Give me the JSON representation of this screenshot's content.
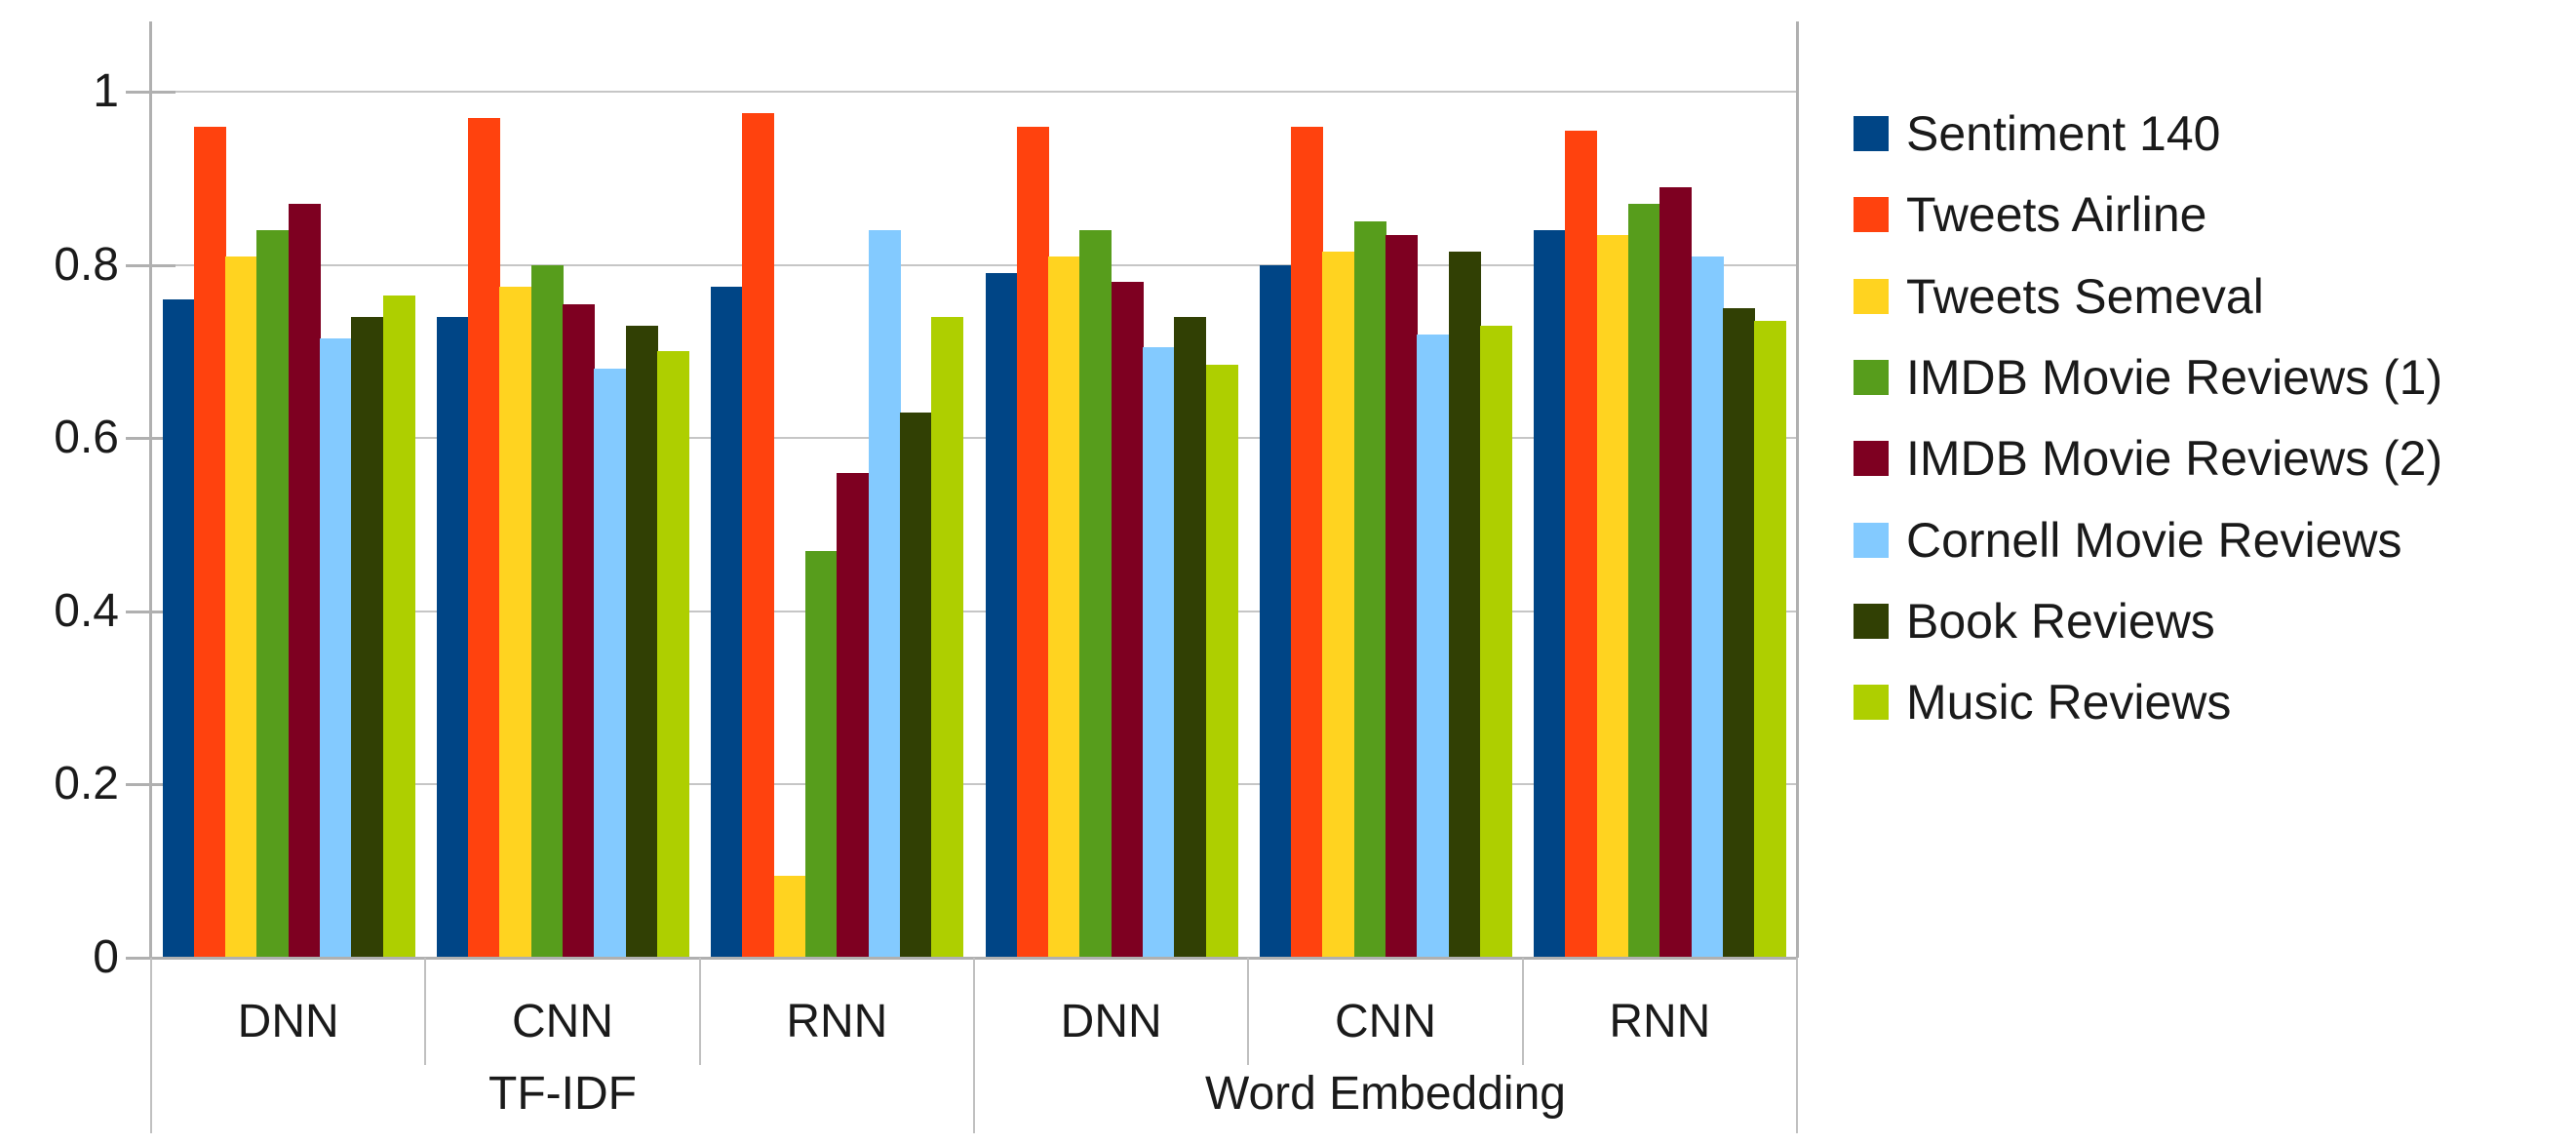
{
  "chart_data": {
    "type": "bar",
    "title": "",
    "xlabel": "",
    "ylabel": "",
    "ylim": [
      0,
      1
    ],
    "y_ticks": [
      0,
      0.2,
      0.4,
      0.6,
      0.8,
      1
    ],
    "y_tick_labels": [
      "0",
      "0.2",
      "0.4",
      "0.6",
      "0.8",
      "1"
    ],
    "grid": true,
    "legend_position": "right",
    "x_level1": [
      "DNN",
      "CNN",
      "RNN",
      "DNN",
      "CNN",
      "RNN"
    ],
    "x_level2": [
      {
        "label": "TF-IDF",
        "span": 3
      },
      {
        "label": "Word Embedding",
        "span": 3
      }
    ],
    "series": [
      {
        "name": "Sentiment 140",
        "color": "#004586",
        "values": [
          0.76,
          0.74,
          0.775,
          0.79,
          0.8,
          0.84
        ]
      },
      {
        "name": "Tweets Airline",
        "color": "#FF420E",
        "values": [
          0.96,
          0.97,
          0.975,
          0.96,
          0.96,
          0.955
        ]
      },
      {
        "name": "Tweets Semeval",
        "color": "#FFD320",
        "values": [
          0.81,
          0.775,
          0.095,
          0.81,
          0.815,
          0.835
        ]
      },
      {
        "name": "IMDB Movie Reviews (1)",
        "color": "#579D1C",
        "values": [
          0.84,
          0.8,
          0.47,
          0.84,
          0.85,
          0.87
        ]
      },
      {
        "name": "IMDB Movie Reviews (2)",
        "color": "#7E0021",
        "values": [
          0.87,
          0.755,
          0.56,
          0.78,
          0.835,
          0.89
        ]
      },
      {
        "name": "Cornell Movie Reviews",
        "color": "#83CAFF",
        "values": [
          0.715,
          0.68,
          0.84,
          0.705,
          0.72,
          0.81
        ]
      },
      {
        "name": "Book Reviews",
        "color": "#314004",
        "values": [
          0.74,
          0.73,
          0.63,
          0.74,
          0.815,
          0.75
        ]
      },
      {
        "name": "Music Reviews",
        "color": "#AECF00",
        "values": [
          0.765,
          0.7,
          0.74,
          0.685,
          0.73,
          0.735
        ]
      }
    ]
  },
  "colors": {
    "background": "#ffffff",
    "axis": "#b0b0b0",
    "gridline": "#c6c6c6",
    "text": "#1a1a1a"
  }
}
